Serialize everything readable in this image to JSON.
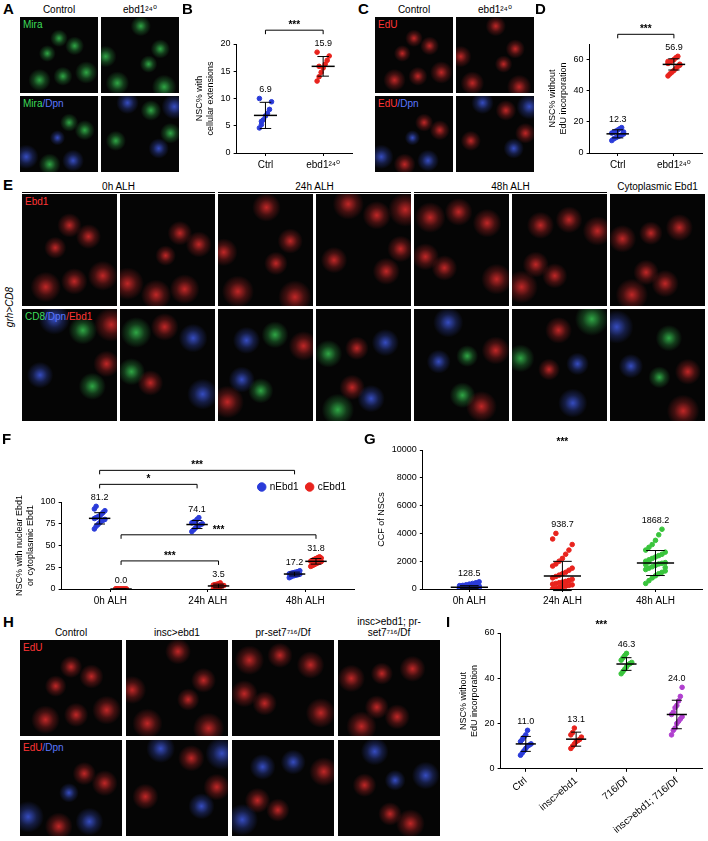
{
  "image_panels": [
    {
      "panel": "A",
      "columns": [
        "Control",
        "ebd1²⁴⁰"
      ],
      "rows": [
        "Mira",
        "Mira/Dpn"
      ]
    },
    {
      "panel": "C",
      "columns": [
        "Control",
        "ebd1²⁴⁰"
      ],
      "rows": [
        "EdU",
        "EdU/Dpn"
      ]
    },
    {
      "panel": "E",
      "side_label": "grh>CD8",
      "columns": [
        "0h ALH",
        "24h ALH",
        "48h ALH"
      ],
      "rows": [
        "Ebd1",
        "CD8/Dpn/Ebd1"
      ],
      "extra_column": "Cytoplasmic Ebd1"
    },
    {
      "panel": "H",
      "columns": [
        "Control",
        "insc>ebd1",
        "pr-set7⁷¹⁶/Df",
        "insc>ebd1; pr-set7⁷¹⁶/Df"
      ],
      "rows": [
        "EdU",
        "EdU/Dpn"
      ]
    }
  ],
  "chart_data": [
    {
      "panel": "B",
      "type": "scatter",
      "categories": [
        "Ctrl",
        "ebd1²⁴⁰"
      ],
      "ylabel": [
        "NSC% with",
        "cellular extensions"
      ],
      "ylim": [
        0,
        20
      ],
      "yticks": [
        0,
        5,
        10,
        15,
        20
      ],
      "grid": false,
      "data_labels": true,
      "series": [
        {
          "colors": [
            "#2a3bd9",
            "#e8231d"
          ],
          "values": [
            6.9,
            15.9
          ],
          "sd": [
            2.4,
            1.8
          ],
          "points": [
            [
              4.6,
              5.2,
              6.1,
              6.8,
              7.3,
              8.0,
              9.4,
              10.0,
              5.8
            ],
            [
              13.2,
              14.0,
              14.8,
              15.6,
              16.3,
              17.0,
              17.8,
              18.5,
              15.9
            ]
          ]
        }
      ],
      "significance": [
        {
          "groups": [
            "Ctrl",
            "ebd1²⁴⁰"
          ],
          "label": "***"
        }
      ]
    },
    {
      "panel": "D",
      "type": "scatter",
      "categories": [
        "Ctrl",
        "ebd1²⁴⁰"
      ],
      "ylabel": [
        "NSC% without",
        "EdU incorporation"
      ],
      "ylim": [
        0,
        70
      ],
      "yticks": [
        0,
        20,
        40,
        60
      ],
      "grid": false,
      "data_labels": true,
      "series": [
        {
          "colors": [
            "#2a3bd9",
            "#e8231d"
          ],
          "values": [
            12.3,
            56.9
          ],
          "sd": [
            2.6,
            3.6
          ],
          "points": [
            [
              8.0,
              9.1,
              9.8,
              10.5,
              11.0,
              11.6,
              12.2,
              12.8,
              13.3,
              14.0,
              14.7,
              15.5,
              16.3,
              13.5
            ],
            [
              49.5,
              50.8,
              51.9,
              53.0,
              54.2,
              55.6,
              56.4,
              57.5,
              58.3,
              59.1,
              60.0,
              61.2,
              62.1,
              57.0,
              58.8
            ]
          ]
        }
      ],
      "significance": [
        {
          "groups": [
            "Ctrl",
            "ebd1²⁴⁰"
          ],
          "label": "***"
        }
      ]
    },
    {
      "panel": "F",
      "type": "scatter",
      "categories": [
        "0h ALH",
        "24h ALH",
        "48h ALH"
      ],
      "ylabel": [
        "NSC% with nuclear Ebd1",
        "or cytoplasmic Ebd1"
      ],
      "ylim": [
        0,
        100
      ],
      "yticks": [
        0,
        25,
        50,
        75,
        100
      ],
      "grid": false,
      "data_labels": true,
      "legend": "top-right",
      "series": [
        {
          "name": "nEbd1",
          "color": "#2a3bd9",
          "values": [
            81.2,
            74.1,
            17.2
          ],
          "sd": [
            6.5,
            4.6,
            2.2
          ],
          "points": [
            [
              69,
              72,
              74,
              76,
              78,
              79,
              80,
              81,
              82,
              83,
              84,
              86,
              88,
              90,
              92,
              95
            ],
            [
              66,
              68,
              70,
              72,
              73,
              74,
              75,
              76,
              77,
              78,
              80,
              82
            ],
            [
              13,
              14,
              15,
              15.5,
              16,
              16.5,
              17,
              17.5,
              18,
              18.5,
              19,
              19.5,
              20,
              21
            ]
          ]
        },
        {
          "name": "cEbd1",
          "color": "#e8231d",
          "values": [
            0,
            3.5,
            31.8
          ],
          "value_labels": [
            "0.0",
            "3.5",
            "31.8"
          ],
          "sd": [
            0,
            2.1,
            3.2
          ],
          "points": [
            [
              0,
              0,
              0,
              0,
              0,
              0,
              0,
              0,
              0,
              0,
              0,
              0,
              0,
              0,
              0,
              0
            ],
            [
              0,
              0,
              1.5,
              2,
              3,
              3.5,
              4,
              4.5,
              5,
              5.5,
              6,
              7
            ],
            [
              26,
              27,
              28,
              29,
              30,
              31,
              31.5,
              32,
              33,
              34,
              35,
              36,
              37,
              35.5
            ]
          ]
        }
      ],
      "significance": [
        {
          "series": "nEbd1",
          "groups": [
            "0h ALH",
            "24h ALH"
          ],
          "label": "*"
        },
        {
          "series": "nEbd1",
          "groups": [
            "0h ALH",
            "48h ALH"
          ],
          "label": "***"
        },
        {
          "series": "cEbd1",
          "groups": [
            "0h ALH",
            "24h ALH"
          ],
          "label": "***"
        },
        {
          "series": "cEbd1",
          "groups": [
            "0h ALH",
            "48h ALH"
          ],
          "label": "***"
        }
      ]
    },
    {
      "panel": "G",
      "type": "scatter",
      "categories": [
        "0h ALH",
        "24h ALH",
        "48h ALH"
      ],
      "ylabel": [
        "CCF of NSCs"
      ],
      "ylim": [
        0,
        10000
      ],
      "yticks": [
        0,
        2000,
        4000,
        6000,
        8000,
        10000
      ],
      "grid": false,
      "data_labels": true,
      "series": [
        {
          "colors": [
            "#2a3bd9",
            "#e8231d",
            "#39c43c"
          ],
          "values": [
            128.5,
            938.7,
            1868.2
          ],
          "sd": [
            110,
            1050,
            900
          ],
          "points": [
            [
              5,
              10,
              20,
              30,
              40,
              50,
              60,
              70,
              80,
              90,
              100,
              110,
              120,
              130,
              140,
              150,
              160,
              170,
              180,
              200,
              220,
              240,
              260,
              300,
              350,
              400,
              450,
              520,
              25,
              65,
              85,
              115
            ],
            [
              20,
              50,
              100,
              150,
              200,
              250,
              300,
              350,
              400,
              450,
              500,
              550,
              600,
              700,
              800,
              900,
              1000,
              1100,
              1200,
              1350,
              1500,
              1650,
              1800,
              2000,
              2200,
              2500,
              2800,
              3200,
              3600,
              4000,
              80,
              180,
              420,
              620
            ],
            [
              400,
              600,
              800,
              950,
              1100,
              1200,
              1300,
              1400,
              1500,
              1600,
              1700,
              1800,
              1850,
              1900,
              2000,
              2100,
              2200,
              2300,
              2400,
              2500,
              2650,
              2800,
              3000,
              3200,
              3500,
              3900,
              4300,
              1550,
              1750,
              1950
            ]
          ]
        }
      ],
      "significance": [
        {
          "label": "***"
        }
      ]
    },
    {
      "panel": "I",
      "type": "scatter",
      "categories": [
        "Ctrl",
        "insc>ebd1",
        "716/Df",
        "insc>ebd1; 716/Df"
      ],
      "ylabel": [
        "NSC% without",
        "EdU incorporation"
      ],
      "ylim": [
        0,
        60
      ],
      "yticks": [
        0,
        20,
        40,
        60
      ],
      "grid": false,
      "data_labels": true,
      "series": [
        {
          "colors": [
            "#2a3bd9",
            "#e8231d",
            "#39c43c",
            "#b03fcf"
          ],
          "values": [
            11,
            13.1,
            46.3,
            24
          ],
          "value_labels": [
            "11.0",
            "13.1",
            "46.3",
            "24.0"
          ],
          "sd": [
            3.3,
            3.1,
            2.8,
            6.3
          ],
          "points": [
            [
              6,
              7,
              8,
              9,
              10,
              10.5,
              11,
              12,
              13,
              14,
              15,
              17
            ],
            [
              9,
              10,
              11,
              12,
              12.5,
              13,
              14,
              15,
              16,
              18
            ],
            [
              42,
              43,
              44,
              45,
              46,
              46.5,
              47,
              48,
              49,
              50,
              51
            ],
            [
              15,
              17,
              18,
              20,
              21,
              22,
              23,
              24,
              25,
              27,
              28,
              30,
              32,
              36
            ]
          ]
        }
      ],
      "significance": [
        {
          "label": "***"
        }
      ]
    }
  ]
}
